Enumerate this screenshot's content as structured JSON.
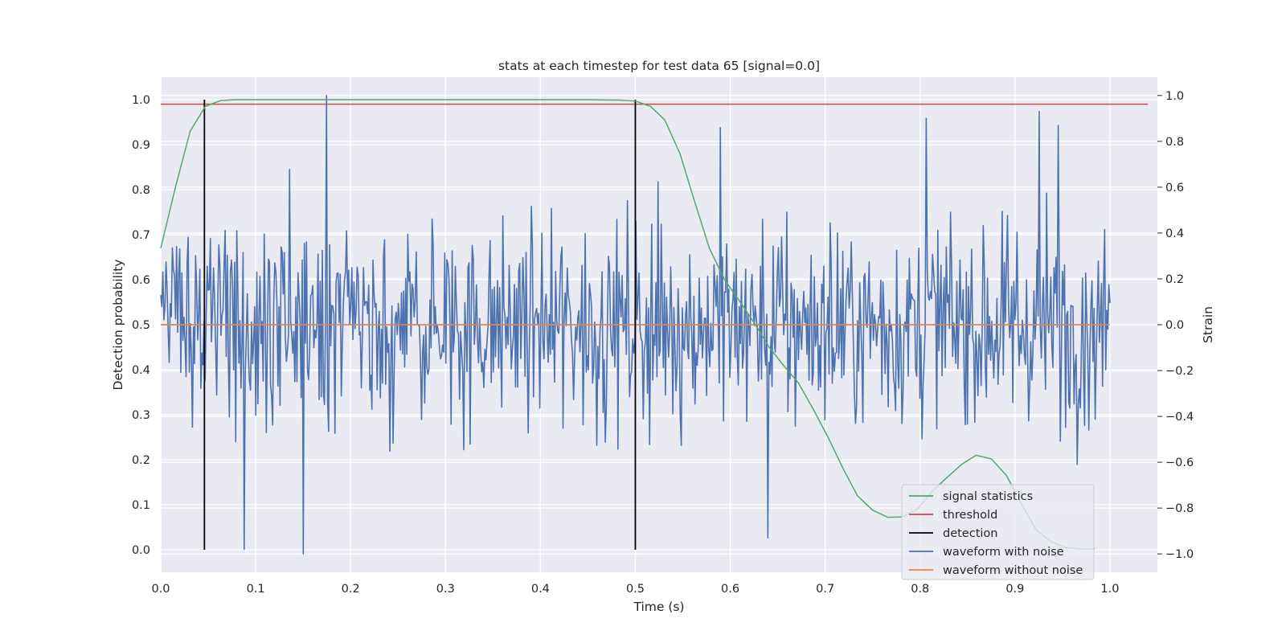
{
  "chart_data": {
    "type": "line",
    "title": "stats at each timestep for test data 65 [signal=0.0]",
    "xlabel": "Time (s)",
    "ylabel_left": "Detection probability",
    "ylabel_right": "Strain",
    "xlim": [
      0.0,
      1.05
    ],
    "ylim_left": [
      -0.05,
      1.05
    ],
    "ylim_right": [
      -1.08,
      1.08
    ],
    "x_ticks": [
      0.0,
      0.1,
      0.2,
      0.3,
      0.4,
      0.5,
      0.6,
      0.7,
      0.8,
      0.9,
      1.0
    ],
    "x_tick_labels": [
      "0.0",
      "0.1",
      "0.2",
      "0.3",
      "0.4",
      "0.5",
      "0.6",
      "0.7",
      "0.8",
      "0.9",
      "1.0"
    ],
    "y_left_ticks": [
      0.0,
      0.1,
      0.2,
      0.3,
      0.4,
      0.5,
      0.6,
      0.7,
      0.8,
      0.9,
      1.0
    ],
    "y_left_tick_labels": [
      "0.0",
      "0.1",
      "0.2",
      "0.3",
      "0.4",
      "0.5",
      "0.6",
      "0.7",
      "0.8",
      "0.9",
      "1.0"
    ],
    "y_right_ticks": [
      1.0,
      0.8,
      0.6,
      0.4,
      0.2,
      0.0,
      -0.2,
      -0.4,
      -0.6,
      -0.8,
      -1.0
    ],
    "y_right_tick_labels": [
      "1.0",
      "0.8",
      "0.6",
      "0.4",
      "0.2",
      "0.0",
      "−0.2",
      "−0.4",
      "−0.6",
      "−0.8",
      "−1.0"
    ],
    "grid": true,
    "legend_position": "lower-right",
    "series": [
      {
        "name": "signal statistics",
        "axis": "left",
        "color": "#55a868",
        "x": [
          0.0,
          0.016,
          0.031,
          0.047,
          0.063,
          0.078,
          0.1,
          0.2,
          0.3,
          0.4,
          0.45,
          0.484,
          0.5,
          0.516,
          0.531,
          0.547,
          0.563,
          0.578,
          0.594,
          0.609,
          0.625,
          0.641,
          0.656,
          0.672,
          0.688,
          0.703,
          0.719,
          0.734,
          0.75,
          0.766,
          0.781,
          0.797,
          0.813,
          0.828,
          0.844,
          0.859,
          0.875,
          0.891,
          0.906,
          0.922,
          0.938,
          0.953,
          0.969,
          0.984
        ],
        "y": [
          0.67,
          0.81,
          0.93,
          0.985,
          0.998,
          1.0,
          1.0,
          1.0,
          1.0,
          1.0,
          1.0,
          0.999,
          0.997,
          0.985,
          0.955,
          0.88,
          0.77,
          0.67,
          0.6,
          0.555,
          0.505,
          0.45,
          0.41,
          0.37,
          0.31,
          0.25,
          0.18,
          0.12,
          0.088,
          0.072,
          0.073,
          0.09,
          0.13,
          0.16,
          0.19,
          0.21,
          0.202,
          0.165,
          0.105,
          0.045,
          0.018,
          0.005,
          0.002,
          0.002
        ]
      },
      {
        "name": "threshold",
        "axis": "left",
        "color": "#c44e52",
        "x": [
          0.0,
          1.04
        ],
        "y": [
          0.99,
          0.99
        ]
      },
      {
        "name": "detection",
        "axis": "left",
        "color": "#000000",
        "lines": [
          {
            "x": 0.046,
            "y0": 0.0,
            "y1": 1.0
          },
          {
            "x": 0.5,
            "y0": 0.0,
            "y1": 1.0
          }
        ]
      },
      {
        "name": "waveform with noise",
        "axis": "right",
        "color": "#4c72b0",
        "x_start": 0.0,
        "x_end": 1.0,
        "points": 900,
        "y_range": [
          -1.0,
          1.0
        ],
        "peak_events": [
          {
            "x": 0.175,
            "y": 1.0
          },
          {
            "x": 0.15,
            "y": -1.0
          },
          {
            "x": 0.088,
            "y": -0.98
          },
          {
            "x": 0.925,
            "y": 0.93
          },
          {
            "x": 0.64,
            "y": -0.93
          },
          {
            "x": 0.59,
            "y": 0.86
          },
          {
            "x": 0.806,
            "y": 0.9
          },
          {
            "x": 0.945,
            "y": 0.87
          }
        ]
      },
      {
        "name": "waveform without noise",
        "axis": "right",
        "color": "#dd8452",
        "x": [
          0.0,
          1.0
        ],
        "y": [
          0.0,
          0.0
        ]
      }
    ]
  }
}
